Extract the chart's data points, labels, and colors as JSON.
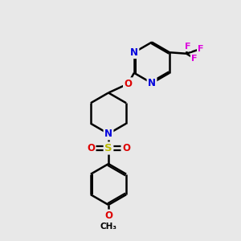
{
  "background_color": "#e8e8e8",
  "bond_color": "#000000",
  "bond_width": 1.8,
  "figsize": [
    3.0,
    3.0
  ],
  "dpi": 100,
  "colors": {
    "N": "#0000dd",
    "O": "#dd0000",
    "S": "#bbbb00",
    "F": "#dd00dd",
    "C": "#000000"
  }
}
